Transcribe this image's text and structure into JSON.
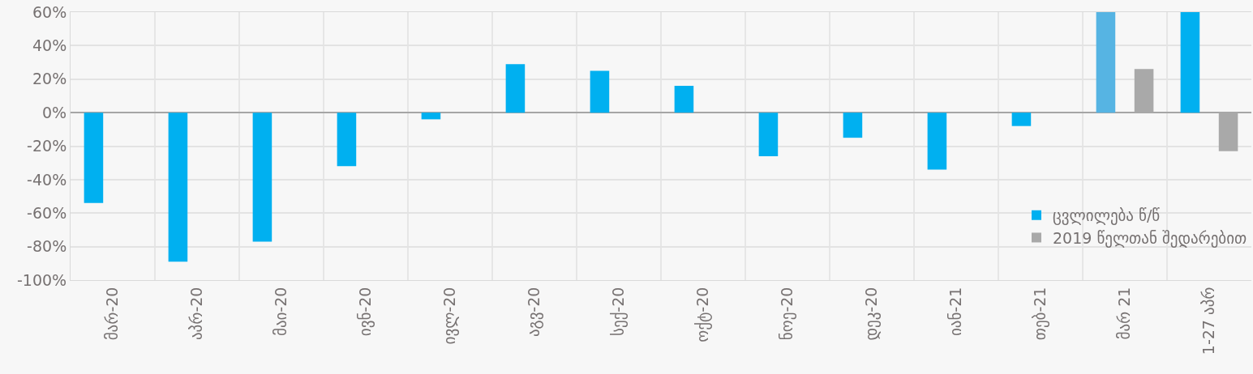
{
  "chart_data": {
    "type": "bar",
    "categories": [
      "მარ-20",
      "აპრ-20",
      "მაი-20",
      "ივნ-20",
      "ივლ-20",
      "აგვ-20",
      "სექ-20",
      "ოქტ-20",
      "ნოე-20",
      "დეკ-20",
      "იან-21",
      "თებ-21",
      "მარ 21",
      "1-27 აპრ"
    ],
    "series": [
      {
        "name": "ცვლილება წ/წ",
        "color": "#00b0f0",
        "colors": [
          "#00b0f0",
          "#00b0f0",
          "#00b0f0",
          "#00b0f0",
          "#00b0f0",
          "#00b0f0",
          "#00b0f0",
          "#00b0f0",
          "#00b0f0",
          "#00b0f0",
          "#00b0f0",
          "#00b0f0",
          "#56b4e3",
          "#00b0f0"
        ],
        "values": [
          -54,
          -89,
          -77,
          -32,
          -4,
          29,
          25,
          16,
          -26,
          -15,
          -34,
          -8,
          60,
          60
        ]
      },
      {
        "name": "2019 წელთან შედარებით",
        "color": "#a9a9a9",
        "values": [
          null,
          null,
          null,
          null,
          null,
          null,
          null,
          null,
          null,
          null,
          null,
          null,
          26,
          -23
        ]
      }
    ],
    "ylim": [
      -100,
      60
    ],
    "yticks": [
      {
        "value": -100,
        "label": "-100%"
      },
      {
        "value": -80,
        "label": "-80%"
      },
      {
        "value": -60,
        "label": "-60%"
      },
      {
        "value": -40,
        "label": "-40%"
      },
      {
        "value": -20,
        "label": "-20%"
      },
      {
        "value": 0,
        "label": "0%"
      },
      {
        "value": 20,
        "label": "20%"
      },
      {
        "value": 40,
        "label": "40%"
      },
      {
        "value": 60,
        "label": "60%"
      }
    ],
    "grid": true,
    "legend": "bottom right"
  }
}
